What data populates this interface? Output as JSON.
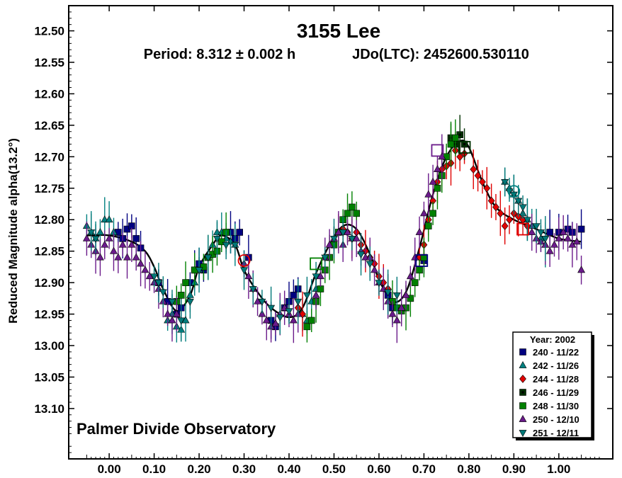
{
  "chart_data": {
    "type": "scatter",
    "title": "3155 Lee",
    "subtitle_period": "Period: 8.312 ± 0.002 h",
    "subtitle_epoch": "JDo(LTC): 2452600.530110",
    "ylabel": "Reduced Magnitude alpha(13.2°)",
    "xlabel": "",
    "xlim": [
      -0.09,
      1.12
    ],
    "ylim": [
      12.46,
      13.18
    ],
    "y_inverted": true,
    "x_ticks": [
      "0.00",
      "0.10",
      "0.20",
      "0.30",
      "0.40",
      "0.50",
      "0.60",
      "0.70",
      "0.80",
      "0.90",
      "1.00"
    ],
    "y_ticks": [
      "12.50",
      "12.55",
      "12.60",
      "12.65",
      "12.70",
      "12.75",
      "12.80",
      "12.85",
      "12.90",
      "12.95",
      "13.00",
      "13.05",
      "13.10"
    ],
    "grid": false,
    "legend_position": "bottom-right",
    "legend_title": "Year: 2002",
    "watermark": "Palmer Divide Observatory",
    "fit_curve": {
      "x": [
        -0.05,
        0.0,
        0.05,
        0.08,
        0.1,
        0.12,
        0.15,
        0.18,
        0.2,
        0.23,
        0.25,
        0.28,
        0.3,
        0.33,
        0.36,
        0.4,
        0.43,
        0.46,
        0.49,
        0.52,
        0.55,
        0.58,
        0.6,
        0.63,
        0.66,
        0.69,
        0.72,
        0.75,
        0.78,
        0.8,
        0.83,
        0.86,
        0.9,
        0.95,
        1.0,
        1.05
      ],
      "y": [
        12.825,
        12.825,
        12.835,
        12.85,
        12.875,
        12.91,
        12.945,
        12.92,
        12.875,
        12.84,
        12.825,
        12.84,
        12.88,
        12.915,
        12.94,
        12.955,
        12.94,
        12.885,
        12.84,
        12.81,
        12.815,
        12.855,
        12.895,
        12.93,
        12.915,
        12.845,
        12.76,
        12.7,
        12.675,
        12.685,
        12.74,
        12.78,
        12.8,
        12.815,
        12.83,
        12.835
      ]
    },
    "series": [
      {
        "name": "240 - 11/22",
        "marker": "square",
        "color": "#000080",
        "points": [
          [
            0.02,
            12.82
          ],
          [
            0.03,
            12.83
          ],
          [
            0.04,
            12.815
          ],
          [
            0.05,
            12.81
          ],
          [
            0.06,
            12.83
          ],
          [
            0.07,
            12.845
          ],
          [
            0.11,
            12.9
          ],
          [
            0.13,
            12.93
          ],
          [
            0.15,
            12.95
          ],
          [
            0.16,
            12.94
          ],
          [
            0.18,
            12.9
          ],
          [
            0.19,
            12.88
          ],
          [
            0.2,
            12.87
          ],
          [
            0.21,
            12.88
          ],
          [
            0.27,
            12.82
          ],
          [
            0.28,
            12.83
          ],
          [
            0.29,
            12.82
          ],
          [
            0.31,
            12.86
          ],
          [
            0.36,
            12.96
          ],
          [
            0.37,
            12.97
          ],
          [
            0.39,
            12.94
          ],
          [
            0.4,
            12.93
          ],
          [
            0.41,
            12.92
          ],
          [
            0.42,
            12.91
          ],
          [
            0.62,
            12.92
          ],
          [
            0.63,
            12.94
          ],
          [
            0.7,
            12.865
          ],
          [
            0.98,
            12.82
          ],
          [
            1.0,
            12.82
          ],
          [
            1.02,
            12.815
          ],
          [
            1.03,
            12.82
          ],
          [
            1.05,
            12.815
          ]
        ]
      },
      {
        "name": "242 - 11/26",
        "marker": "triangle-up",
        "color": "#008080",
        "points": [
          [
            -0.05,
            12.81
          ],
          [
            -0.04,
            12.82
          ],
          [
            -0.03,
            12.83
          ],
          [
            -0.02,
            12.82
          ],
          [
            -0.01,
            12.8
          ],
          [
            0.0,
            12.8
          ],
          [
            0.01,
            12.82
          ],
          [
            0.13,
            12.96
          ],
          [
            0.14,
            12.95
          ],
          [
            0.15,
            12.97
          ],
          [
            0.16,
            12.975
          ],
          [
            0.17,
            12.96
          ],
          [
            0.18,
            12.92
          ],
          [
            0.19,
            12.9
          ],
          [
            0.2,
            12.88
          ],
          [
            0.22,
            12.86
          ],
          [
            0.23,
            12.84
          ],
          [
            0.24,
            12.82
          ],
          [
            0.25,
            12.82
          ],
          [
            0.26,
            12.83
          ],
          [
            0.27,
            12.835
          ],
          [
            0.28,
            12.84
          ],
          [
            0.43,
            12.95
          ],
          [
            0.44,
            12.96
          ],
          [
            0.45,
            12.93
          ],
          [
            0.46,
            12.91
          ],
          [
            0.88,
            12.74
          ],
          [
            0.89,
            12.75
          ],
          [
            0.9,
            12.76
          ],
          [
            0.91,
            12.77
          ],
          [
            0.92,
            12.79
          ],
          [
            0.93,
            12.8
          ],
          [
            0.94,
            12.81
          ],
          [
            0.96,
            12.83
          ],
          [
            0.97,
            12.84
          ]
        ]
      },
      {
        "name": "244 - 11/28",
        "marker": "diamond",
        "color": "#e00000",
        "points": [
          [
            0.42,
            12.94
          ],
          [
            0.43,
            12.95
          ],
          [
            0.51,
            12.82
          ],
          [
            0.52,
            12.815
          ],
          [
            0.53,
            12.82
          ],
          [
            0.54,
            12.83
          ],
          [
            0.55,
            12.82
          ],
          [
            0.56,
            12.84
          ],
          [
            0.57,
            12.85
          ],
          [
            0.58,
            12.86
          ],
          [
            0.59,
            12.87
          ],
          [
            0.6,
            12.89
          ],
          [
            0.61,
            12.9
          ],
          [
            0.62,
            12.91
          ],
          [
            0.69,
            12.86
          ],
          [
            0.7,
            12.84
          ],
          [
            0.71,
            12.8
          ],
          [
            0.72,
            12.77
          ],
          [
            0.73,
            12.74
          ],
          [
            0.74,
            12.72
          ],
          [
            0.75,
            12.715
          ],
          [
            0.76,
            12.71
          ],
          [
            0.77,
            12.69
          ],
          [
            0.78,
            12.7
          ],
          [
            0.79,
            12.695
          ],
          [
            0.81,
            12.72
          ],
          [
            0.82,
            12.73
          ],
          [
            0.83,
            12.74
          ],
          [
            0.84,
            12.75
          ],
          [
            0.85,
            12.77
          ],
          [
            0.86,
            12.78
          ],
          [
            0.87,
            12.79
          ],
          [
            0.88,
            12.81
          ],
          [
            0.89,
            12.8
          ],
          [
            0.9,
            12.79
          ],
          [
            0.91,
            12.795
          ],
          [
            0.92,
            12.8
          ],
          [
            0.93,
            12.81
          ]
        ]
      },
      {
        "name": "246 - 11/29",
        "marker": "square-dot",
        "color": "#003000",
        "points": [
          [
            0.76,
            12.67
          ],
          [
            0.77,
            12.68
          ],
          [
            0.78,
            12.665
          ],
          [
            0.79,
            12.68
          ]
        ]
      },
      {
        "name": "248 - 11/30",
        "marker": "square",
        "color": "#008000",
        "points": [
          [
            0.15,
            12.93
          ],
          [
            0.16,
            12.92
          ],
          [
            0.17,
            12.9
          ],
          [
            0.19,
            12.88
          ],
          [
            0.21,
            12.875
          ],
          [
            0.22,
            12.86
          ],
          [
            0.23,
            12.855
          ],
          [
            0.24,
            12.85
          ],
          [
            0.25,
            12.835
          ],
          [
            0.26,
            12.82
          ],
          [
            0.44,
            12.97
          ],
          [
            0.45,
            12.96
          ],
          [
            0.46,
            12.93
          ],
          [
            0.47,
            12.91
          ],
          [
            0.48,
            12.88
          ],
          [
            0.49,
            12.86
          ],
          [
            0.5,
            12.84
          ],
          [
            0.51,
            12.82
          ],
          [
            0.52,
            12.8
          ],
          [
            0.53,
            12.79
          ],
          [
            0.54,
            12.78
          ],
          [
            0.55,
            12.79
          ],
          [
            0.63,
            12.93
          ],
          [
            0.64,
            12.94
          ],
          [
            0.65,
            12.945
          ],
          [
            0.66,
            12.94
          ],
          [
            0.67,
            12.925
          ],
          [
            0.68,
            12.9
          ],
          [
            0.69,
            12.88
          ],
          [
            0.7,
            12.86
          ],
          [
            0.71,
            12.81
          ],
          [
            0.72,
            12.79
          ],
          [
            0.73,
            12.75
          ],
          [
            0.74,
            12.73
          ],
          [
            0.75,
            12.7
          ],
          [
            0.76,
            12.68
          ],
          [
            0.77,
            12.67
          ]
        ]
      },
      {
        "name": "250 - 12/10",
        "marker": "triangle-up",
        "color": "#6a1a8a",
        "points": [
          [
            -0.05,
            12.83
          ],
          [
            -0.04,
            12.84
          ],
          [
            -0.03,
            12.85
          ],
          [
            -0.02,
            12.86
          ],
          [
            -0.01,
            12.84
          ],
          [
            0.0,
            12.83
          ],
          [
            0.01,
            12.85
          ],
          [
            0.02,
            12.86
          ],
          [
            0.03,
            12.84
          ],
          [
            0.04,
            12.86
          ],
          [
            0.05,
            12.84
          ],
          [
            0.06,
            12.86
          ],
          [
            0.07,
            12.87
          ],
          [
            0.08,
            12.88
          ],
          [
            0.09,
            12.89
          ],
          [
            0.1,
            12.9
          ],
          [
            0.11,
            12.91
          ],
          [
            0.12,
            12.93
          ],
          [
            0.13,
            12.95
          ],
          [
            0.14,
            12.96
          ],
          [
            0.15,
            12.95
          ],
          [
            0.3,
            12.87
          ],
          [
            0.31,
            12.89
          ],
          [
            0.32,
            12.91
          ],
          [
            0.33,
            12.93
          ],
          [
            0.34,
            12.95
          ],
          [
            0.35,
            12.96
          ],
          [
            0.36,
            12.97
          ],
          [
            0.37,
            12.965
          ],
          [
            0.38,
            12.95
          ],
          [
            0.39,
            12.94
          ],
          [
            0.4,
            12.95
          ],
          [
            0.41,
            12.96
          ],
          [
            0.42,
            12.95
          ],
          [
            0.46,
            12.92
          ],
          [
            0.47,
            12.89
          ],
          [
            0.48,
            12.86
          ],
          [
            0.49,
            12.84
          ],
          [
            0.5,
            12.83
          ],
          [
            0.51,
            12.82
          ],
          [
            0.52,
            12.84
          ],
          [
            0.53,
            12.82
          ],
          [
            0.54,
            12.83
          ],
          [
            0.55,
            12.83
          ],
          [
            0.56,
            12.85
          ],
          [
            0.57,
            12.86
          ],
          [
            0.58,
            12.86
          ],
          [
            0.59,
            12.88
          ],
          [
            0.6,
            12.9
          ],
          [
            0.61,
            12.91
          ],
          [
            0.62,
            12.93
          ],
          [
            0.63,
            12.95
          ],
          [
            0.64,
            12.96
          ],
          [
            0.65,
            12.94
          ],
          [
            0.66,
            12.92
          ],
          [
            0.67,
            12.89
          ],
          [
            0.68,
            12.86
          ],
          [
            0.69,
            12.82
          ],
          [
            0.7,
            12.79
          ],
          [
            0.71,
            12.76
          ],
          [
            0.72,
            12.74
          ],
          [
            0.73,
            12.72
          ],
          [
            0.74,
            12.7
          ],
          [
            0.94,
            12.82
          ],
          [
            0.95,
            12.83
          ],
          [
            0.96,
            12.835
          ],
          [
            0.97,
            12.84
          ],
          [
            0.98,
            12.85
          ],
          [
            0.99,
            12.84
          ],
          [
            1.0,
            12.83
          ],
          [
            1.01,
            12.82
          ],
          [
            1.02,
            12.83
          ],
          [
            1.03,
            12.84
          ],
          [
            1.04,
            12.835
          ],
          [
            1.05,
            12.88
          ]
        ]
      },
      {
        "name": "251 - 12/11",
        "marker": "triangle-down",
        "color": "#007878",
        "points": [
          [
            -0.04,
            12.82
          ],
          [
            -0.03,
            12.83
          ],
          [
            0.1,
            12.89
          ],
          [
            0.11,
            12.9
          ],
          [
            0.12,
            12.915
          ],
          [
            0.14,
            12.93
          ],
          [
            0.16,
            12.96
          ],
          [
            0.18,
            12.93
          ],
          [
            0.2,
            12.88
          ],
          [
            0.22,
            12.86
          ],
          [
            0.24,
            12.83
          ],
          [
            0.26,
            12.84
          ],
          [
            0.28,
            12.84
          ],
          [
            0.3,
            12.88
          ],
          [
            0.32,
            12.91
          ],
          [
            0.34,
            12.93
          ],
          [
            0.36,
            12.94
          ],
          [
            0.38,
            12.955
          ],
          [
            0.4,
            12.945
          ],
          [
            0.42,
            12.93
          ],
          [
            0.44,
            12.92
          ],
          [
            0.46,
            12.89
          ],
          [
            0.48,
            12.86
          ],
          [
            0.5,
            12.83
          ],
          [
            0.52,
            12.82
          ],
          [
            0.54,
            12.83
          ],
          [
            0.56,
            12.855
          ],
          [
            0.58,
            12.87
          ],
          [
            0.6,
            12.9
          ],
          [
            0.62,
            12.915
          ],
          [
            0.64,
            12.92
          ],
          [
            0.88,
            12.74
          ],
          [
            0.89,
            12.755
          ],
          [
            0.9,
            12.76
          ],
          [
            0.91,
            12.77
          ],
          [
            0.92,
            12.78
          ],
          [
            0.93,
            12.8
          ],
          [
            0.95,
            12.81
          ],
          [
            0.96,
            12.82
          ],
          [
            0.97,
            12.83
          ]
        ]
      }
    ],
    "open_markers": [
      {
        "marker": "square",
        "color": "#000080",
        "x": 0.695,
        "y": 12.865
      },
      {
        "marker": "square",
        "color": "#003000",
        "x": 0.79,
        "y": 12.685
      },
      {
        "marker": "square",
        "color": "#6a1a8a",
        "x": 0.73,
        "y": 12.69
      },
      {
        "marker": "square",
        "color": "#e00000",
        "x": 0.92,
        "y": 12.815
      },
      {
        "marker": "square",
        "color": "#008000",
        "x": 0.46,
        "y": 12.87
      },
      {
        "marker": "circle",
        "color": "#e00000",
        "x": 0.3,
        "y": 12.865
      },
      {
        "marker": "circle",
        "color": "#008080",
        "x": 0.9,
        "y": 12.755
      }
    ]
  }
}
